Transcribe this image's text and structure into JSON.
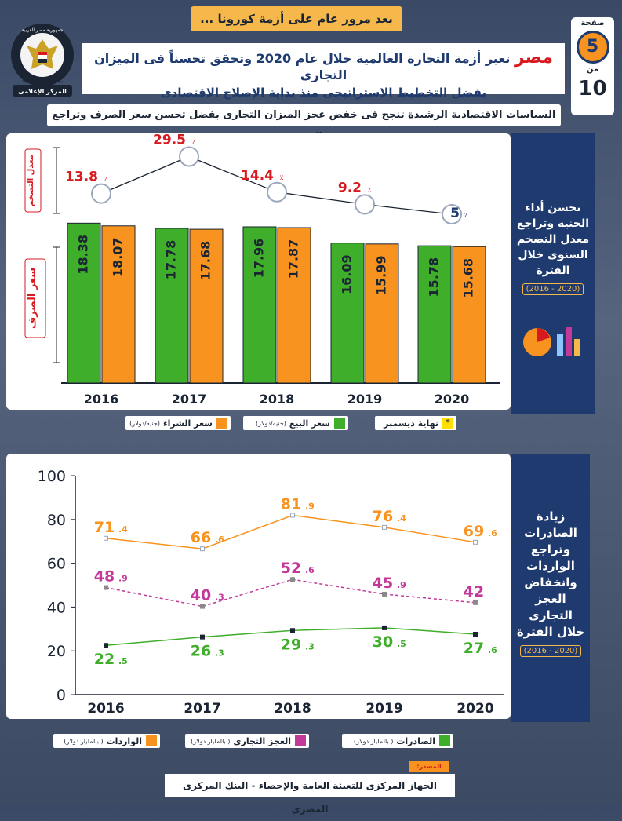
{
  "header": {
    "banner": "بعد مرور عام على أزمة كورونا ...",
    "page_label": "صفحة",
    "page_current": "5",
    "page_of": "من",
    "page_total": "10",
    "headline_country": "مصر",
    "headline_line1": "تعبر أزمة التجارة العالمية خلال عام 2020 وتحقق تحسناً فى الميزان التجارى",
    "headline_line2": "بفضل التخطيط الاستراتيجى منذ بداية الإصلاح الاقتصادى",
    "logo_line1": "جمهورية مصر العربية",
    "logo_line2": "رئاسة مجلس الوزراء",
    "logo_line3": "المركز الإعلامى",
    "subtitle": "السياسات الاقتصادية الرشيدة تنجح فى خفض عجز الميزان التجارى بفضل تحسن سعر الصرف وتراجع التضخم"
  },
  "side1": {
    "text": "تحسن أداء الجنيه وتراجع معدل التضخم السنوى خلال الفترة",
    "range": "(2016 - 2020)"
  },
  "side2": {
    "text": "زيادة الصادرات وتراجع الواردات وانخفاض العجز التجارى خلال الفترة",
    "range": "(2016 - 2020)"
  },
  "legend1": {
    "buy": "سعر الشراء",
    "buy_unit": "(جنيه/دولار)",
    "sell": "سعر البيع",
    "sell_unit": "(جنيه/دولار)",
    "note": "نهاية ديسمبر",
    "note_mark": "*"
  },
  "legend2": {
    "imports": "الواردات",
    "imports_unit": "( بالمليار دولار)",
    "deficit": "العجز التجارى",
    "deficit_unit": "( بالمليار دولار)",
    "exports": "الصادرات",
    "exports_unit": "( بالمليار دولار)"
  },
  "footer": {
    "source_label": "المصدر:",
    "source_text": "الجهاز المركزى للتعبئة العامة والإحصاء - البنك المركزى المصرى"
  },
  "colors": {
    "green": "#3fae2a",
    "orange": "#f7931e",
    "magenta": "#c2399a",
    "navy": "#1e3a6e",
    "red": "#d71920"
  },
  "chart_data": [
    {
      "type": "bar",
      "title": "سعر الصرف",
      "categories": [
        "2016",
        "2017",
        "2018",
        "2019",
        "2020"
      ],
      "series": [
        {
          "name": "سعر البيع",
          "values": [
            18.38,
            17.78,
            17.96,
            16.09,
            15.78
          ],
          "labels": [
            "18.38",
            "17.78",
            "17.96",
            "16.09",
            "15.78"
          ]
        },
        {
          "name": "سعر الشراء",
          "values": [
            18.07,
            17.68,
            17.87,
            15.99,
            15.68
          ],
          "labels": [
            "18.07",
            "17.68",
            "17.87",
            "15.99",
            "15.68"
          ]
        }
      ],
      "ylabel": "سعر الصرف",
      "ylim": [
        0,
        18.5
      ]
    },
    {
      "type": "line",
      "title": "معدل التضخم",
      "categories": [
        "2016",
        "2017",
        "2018",
        "2019",
        "2020"
      ],
      "values": [
        13.8,
        29.5,
        14.4,
        9.2,
        5
      ],
      "labels": [
        "13.8",
        "29.5",
        "14.4",
        "9.2",
        "5"
      ],
      "unit": "٪",
      "ylabel": "معدل التضخم",
      "ylim": [
        0,
        30
      ]
    },
    {
      "type": "line",
      "categories": [
        "2016",
        "2017",
        "2018",
        "2019",
        "2020"
      ],
      "yticks": [
        "100",
        "80",
        "60",
        "40",
        "20",
        "0"
      ],
      "ylim": [
        0,
        100
      ],
      "series": [
        {
          "name": "الواردات",
          "values": [
            71.4,
            66.6,
            81.9,
            76.4,
            69.6
          ],
          "labels": [
            "71.4",
            "66.6",
            "81.9",
            "76.4",
            "69.6"
          ]
        },
        {
          "name": "العجز التجارى",
          "values": [
            48.9,
            40.3,
            52.6,
            45.9,
            42
          ],
          "labels": [
            "48.9",
            "40.3",
            "52.6",
            "45.9",
            "42"
          ]
        },
        {
          "name": "الصادرات",
          "values": [
            22.5,
            26.3,
            29.3,
            30.5,
            27.6
          ],
          "labels": [
            "22.5",
            "26.3",
            "29.3",
            "30.5",
            "27.6"
          ]
        }
      ]
    }
  ]
}
